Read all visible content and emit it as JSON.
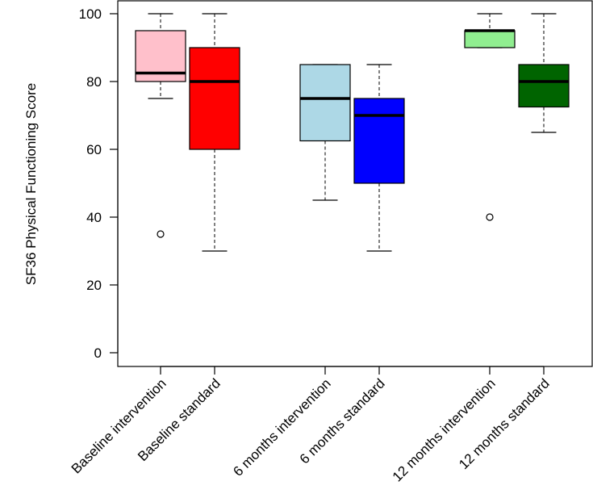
{
  "chart_data": {
    "type": "boxplot",
    "title": "",
    "xlabel": "",
    "ylabel": "SF36 Physical Functioning Score",
    "ylim": [
      -4,
      104
    ],
    "yticks": [
      0,
      20,
      40,
      60,
      80,
      100
    ],
    "ytick_labels": [
      "0",
      "20",
      "40",
      "60",
      "80",
      "100"
    ],
    "grid": false,
    "legend": "none",
    "groups": [
      {
        "name": "Baseline intervention",
        "color": "#ffc0cb",
        "min": 75,
        "q1": 80,
        "median": 82.5,
        "q3": 95,
        "max": 100,
        "outliers": [
          35
        ]
      },
      {
        "name": "Baseline standard",
        "color": "#ff0000",
        "min": 30,
        "q1": 60,
        "median": 80,
        "q3": 90,
        "max": 100,
        "outliers": []
      },
      {
        "name": "6 months intervention",
        "color": "#add8e6",
        "min": 45,
        "q1": 62.5,
        "median": 75,
        "q3": 85,
        "max": 85,
        "outliers": []
      },
      {
        "name": "6 months standard",
        "color": "#0000ff",
        "min": 30,
        "q1": 50,
        "median": 70,
        "q3": 75,
        "max": 85,
        "outliers": []
      },
      {
        "name": "12 months intervention",
        "color": "#90ee90",
        "min": 90,
        "q1": 90,
        "median": 95,
        "q3": 95,
        "max": 100,
        "outliers": [
          40
        ]
      },
      {
        "name": "12 months standard",
        "color": "#006400",
        "min": 65,
        "q1": 72.5,
        "median": 80,
        "q3": 85,
        "max": 100,
        "outliers": []
      }
    ]
  }
}
